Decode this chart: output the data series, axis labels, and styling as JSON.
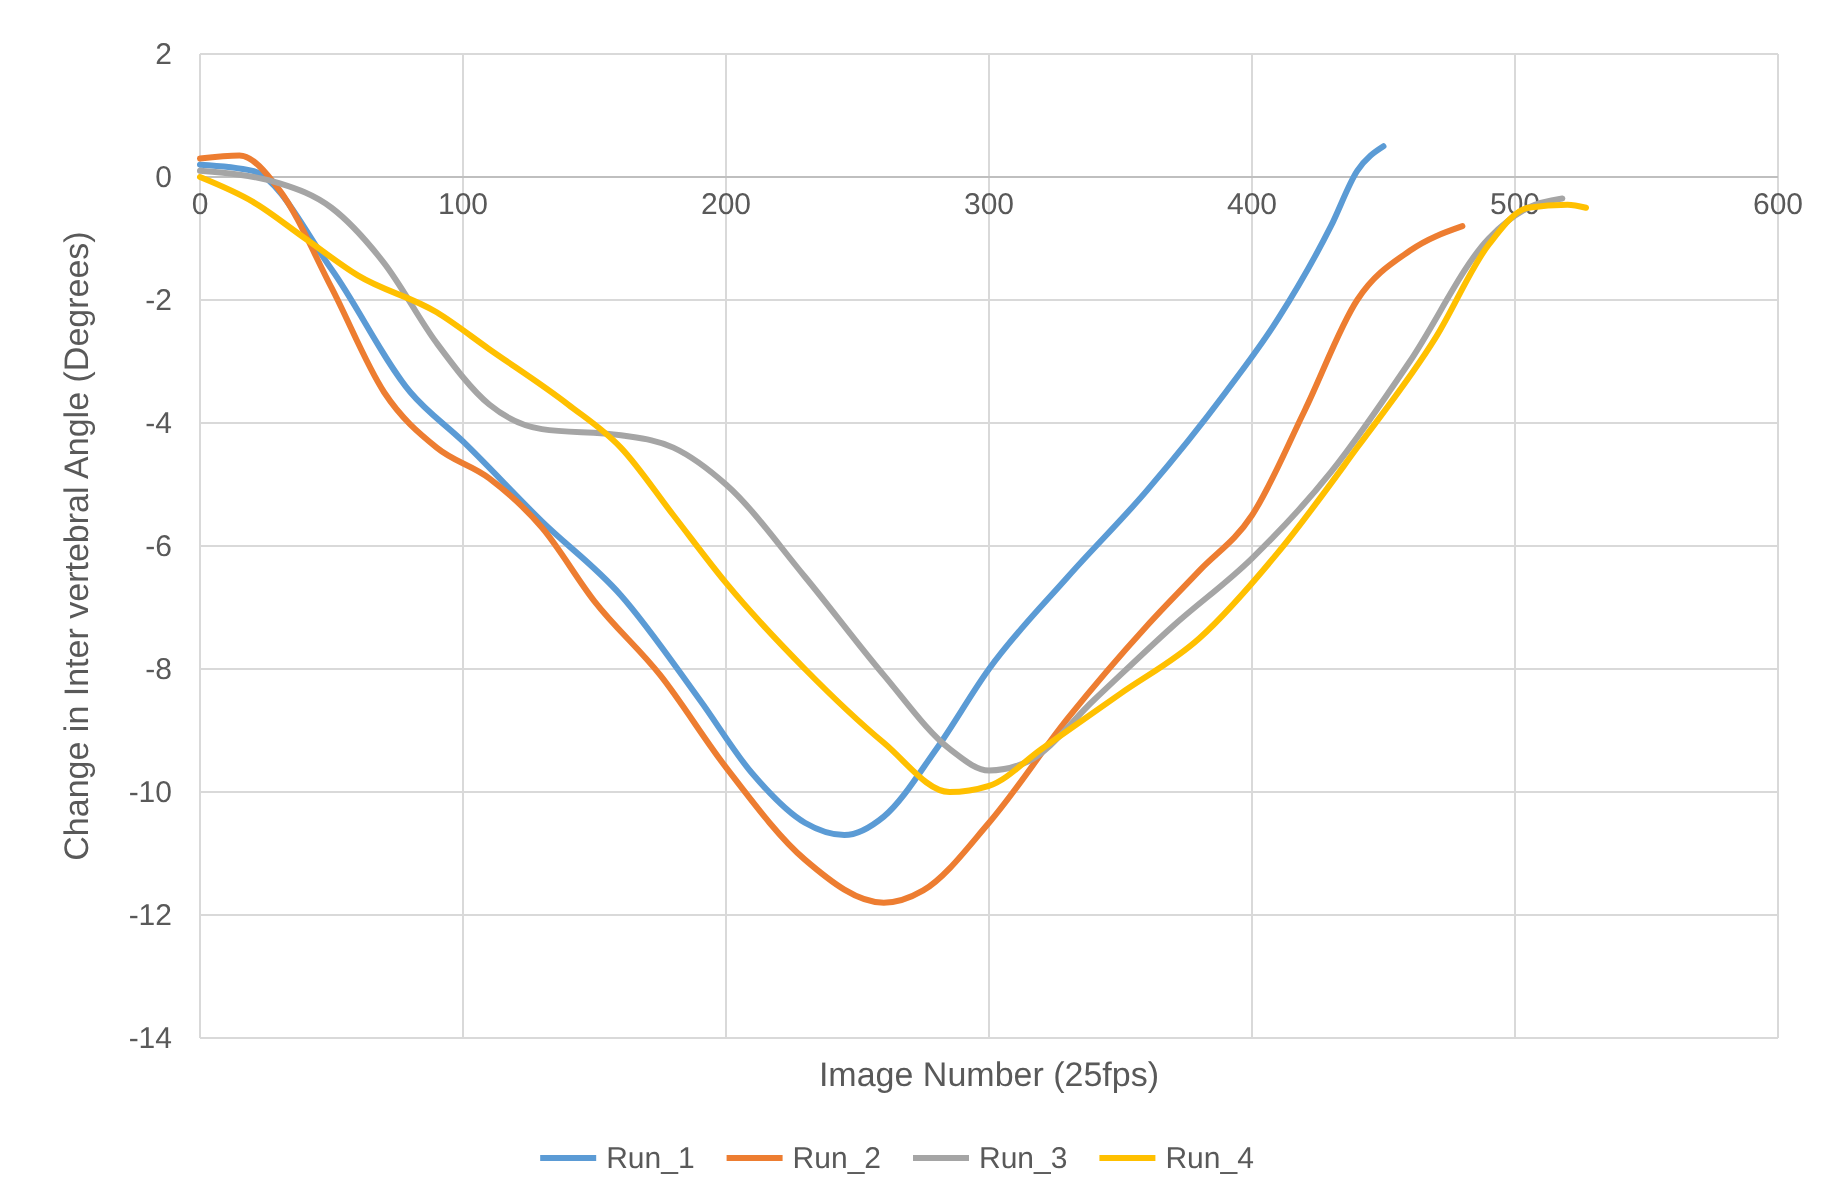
{
  "chart_data": {
    "type": "line",
    "xlabel": "Image Number (25fps)",
    "ylabel": "Change in Inter vertebral Angle (Degrees)",
    "xlim": [
      0,
      600
    ],
    "xticks": [
      0,
      100,
      200,
      300,
      400,
      500,
      600
    ],
    "ylim": [
      -14,
      2
    ],
    "yticks": [
      -14,
      -12,
      -10,
      -8,
      -6,
      -4,
      -2,
      0,
      2
    ],
    "grid": true,
    "legend": "bottom",
    "marker": "none",
    "line_style": "solid",
    "series": [
      {
        "name": "Run_1",
        "color": "#5b9bd5",
        "x": [
          0,
          20,
          50,
          80,
          100,
          130,
          160,
          190,
          210,
          230,
          245,
          260,
          280,
          300,
          330,
          360,
          390,
          410,
          430,
          440,
          450
        ],
        "values": [
          0.2,
          0.1,
          -1.5,
          -3.5,
          -4.3,
          -5.6,
          -6.8,
          -8.5,
          -9.7,
          -10.5,
          -10.7,
          -10.4,
          -9.3,
          -8,
          -6.5,
          -5.1,
          -3.5,
          -2.3,
          -0.8,
          0.1,
          0.5
        ]
      },
      {
        "name": "Run_2",
        "color": "#ed7d31",
        "x": [
          0,
          15,
          30,
          50,
          70,
          90,
          110,
          130,
          150,
          175,
          200,
          230,
          260,
          275,
          300,
          330,
          360,
          380,
          400,
          420,
          440,
          460,
          480
        ],
        "values": [
          0.3,
          0.35,
          -0.2,
          -1.8,
          -3.5,
          -4.4,
          -4.9,
          -5.7,
          -6.9,
          -8.1,
          -9.6,
          -11.1,
          -11.8,
          -11.6,
          -10.5,
          -8.8,
          -7.3,
          -6.4,
          -5.5,
          -3.8,
          -2,
          -1.2,
          -0.8
        ]
      },
      {
        "name": "Run_3",
        "color": "#a5a5a5",
        "x": [
          0,
          30,
          50,
          70,
          90,
          110,
          130,
          160,
          180,
          200,
          230,
          260,
          285,
          300,
          315,
          340,
          370,
          400,
          430,
          460,
          490,
          505,
          518
        ],
        "values": [
          0.1,
          -0.1,
          -0.5,
          -1.4,
          -2.7,
          -3.7,
          -4.1,
          -4.2,
          -4.4,
          -5,
          -6.5,
          -8.1,
          -9.3,
          -9.65,
          -9.5,
          -8.5,
          -7.3,
          -6.2,
          -4.8,
          -3,
          -1,
          -0.5,
          -0.35
        ]
      },
      {
        "name": "Run_4",
        "color": "#ffc000",
        "x": [
          0,
          20,
          40,
          60,
          90,
          110,
          140,
          160,
          180,
          200,
          230,
          260,
          285,
          300,
          320,
          350,
          380,
          410,
          440,
          470,
          490,
          505,
          520,
          527
        ],
        "values": [
          0,
          -0.4,
          -1,
          -1.6,
          -2.2,
          -2.8,
          -3.7,
          -4.4,
          -5.5,
          -6.6,
          -8,
          -9.2,
          -10,
          -9.9,
          -9.3,
          -8.4,
          -7.5,
          -6.1,
          -4.4,
          -2.6,
          -1.1,
          -0.5,
          -0.45,
          -0.5
        ]
      }
    ]
  }
}
